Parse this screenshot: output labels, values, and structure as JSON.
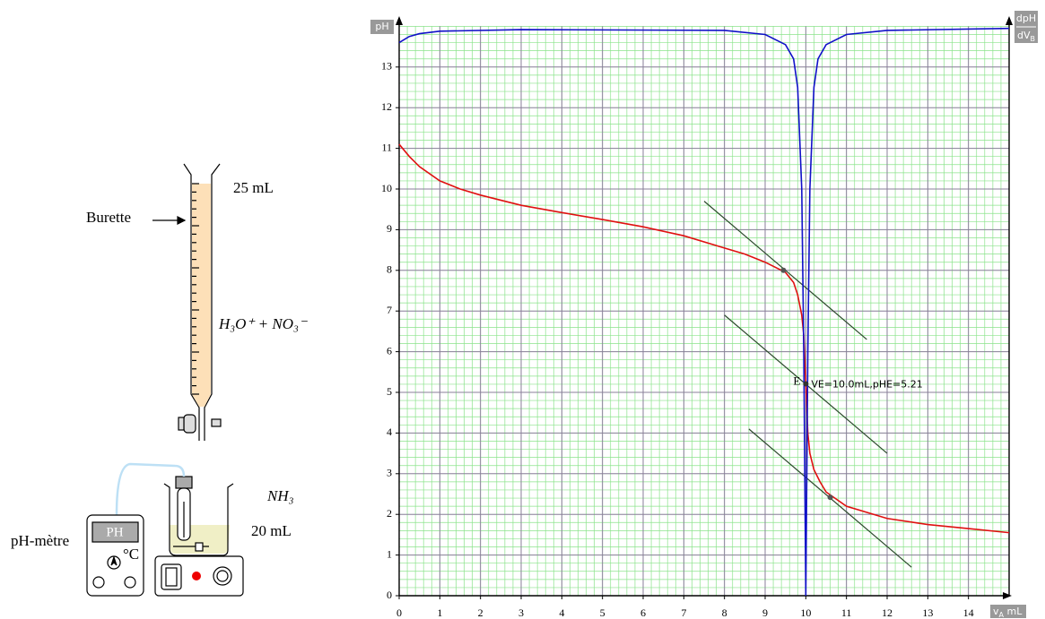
{
  "diagram": {
    "burette_label": "Burette",
    "volume_burette": "25 mL",
    "acid_label": "H₃O⁺ + NO₃⁻",
    "base_label": "NH₃",
    "volume_beaker": "20 mL",
    "meter_label": "pH-mètre",
    "meter_display": "PH",
    "meter_unit": "°C"
  },
  "chart_data": {
    "type": "line",
    "y_label": "pH",
    "y2_label_top": "dpH",
    "y2_label_bottom": [
      "dV",
      "B"
    ],
    "x_label": [
      "v",
      "A",
      " mL"
    ],
    "xlim": [
      0,
      15
    ],
    "ylim": [
      0,
      14
    ],
    "xticks": [
      0,
      1,
      2,
      3,
      4,
      5,
      6,
      7,
      8,
      9,
      10,
      11,
      12,
      13,
      14
    ],
    "yticks": [
      0,
      1,
      2,
      3,
      4,
      5,
      6,
      7,
      8,
      9,
      10,
      11,
      12,
      13
    ],
    "minor_grid_step": 0.2,
    "grid": true,
    "series": [
      {
        "color": "#e01010",
        "x": [
          0,
          0.25,
          0.5,
          1,
          1.5,
          2,
          3,
          4,
          5,
          6,
          7,
          8,
          8.5,
          9,
          9.5,
          9.7,
          9.8,
          9.9,
          9.95,
          10,
          10.05,
          10.1,
          10.2,
          10.35,
          10.5,
          11,
          12,
          13,
          14,
          15
        ],
        "values": [
          11.1,
          10.8,
          10.55,
          10.2,
          10.0,
          9.85,
          9.6,
          9.42,
          9.25,
          9.07,
          8.85,
          8.55,
          8.4,
          8.2,
          7.95,
          7.7,
          7.4,
          6.9,
          6.4,
          5.21,
          4.0,
          3.5,
          3.1,
          2.8,
          2.55,
          2.2,
          1.9,
          1.75,
          1.65,
          1.55
        ]
      },
      {
        "color": "#1010c8",
        "x": [
          0,
          0.25,
          0.5,
          1,
          3,
          8,
          9,
          9.5,
          9.7,
          9.8,
          9.9,
          9.95,
          10,
          10.05,
          10.1,
          10.2,
          10.3,
          10.5,
          11,
          12,
          15
        ],
        "values": [
          13.6,
          13.75,
          13.82,
          13.88,
          13.92,
          13.9,
          13.8,
          13.55,
          13.2,
          12.5,
          10,
          6,
          0,
          6,
          10,
          12.5,
          13.2,
          13.55,
          13.8,
          13.9,
          13.95
        ]
      }
    ],
    "tangents": {
      "color": "#2c4a2c",
      "lines": [
        {
          "x": [
            7.5,
            11.5
          ],
          "values": [
            9.7,
            6.3
          ]
        },
        {
          "x": [
            8,
            12
          ],
          "values": [
            6.9,
            3.5
          ]
        },
        {
          "x": [
            8.6,
            12.6
          ],
          "values": [
            4.1,
            0.7
          ]
        }
      ],
      "points": [
        {
          "x": 9.45,
          "y": 8.0
        },
        {
          "x": 10.6,
          "y": 2.42
        }
      ]
    },
    "equivalence": {
      "x": 10,
      "y": 5.21,
      "label": "E",
      "annotation": "VE=10.0mL,pHE=5.21"
    }
  }
}
